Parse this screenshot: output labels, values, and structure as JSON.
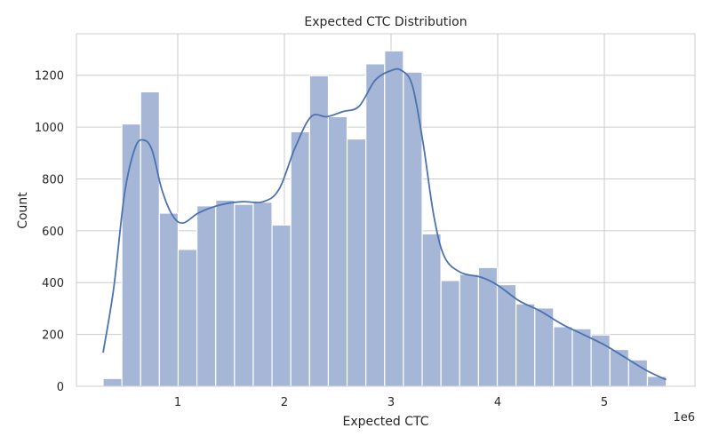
{
  "chart_data": {
    "type": "bar",
    "title": "Expected CTC Distribution",
    "xlabel": "Expected CTC",
    "ylabel": "Count",
    "x_offset_label": "1e6",
    "xlim": [
      50000,
      5850000
    ],
    "ylim": [
      0,
      1360
    ],
    "xticks": [
      {
        "value": 1000000,
        "label": "1"
      },
      {
        "value": 2000000,
        "label": "2"
      },
      {
        "value": 3000000,
        "label": "3"
      },
      {
        "value": 4000000,
        "label": "4"
      },
      {
        "value": 5000000,
        "label": "5"
      }
    ],
    "yticks": [
      {
        "value": 0,
        "label": "0"
      },
      {
        "value": 200,
        "label": "200"
      },
      {
        "value": 400,
        "label": "400"
      },
      {
        "value": 600,
        "label": "600"
      },
      {
        "value": 800,
        "label": "800"
      },
      {
        "value": 1000,
        "label": "1000"
      },
      {
        "value": 1200,
        "label": "1200"
      }
    ],
    "grid": true,
    "bar_color": "#a5b6d6",
    "line_color": "#4c72b0",
    "bin_start": 300000,
    "bin_width": 176000,
    "counts": [
      30,
      1012,
      1136,
      668,
      528,
      696,
      718,
      702,
      710,
      622,
      982,
      1198,
      1040,
      954,
      1244,
      1294,
      1212,
      588,
      408,
      432,
      458,
      392,
      318,
      302,
      230,
      222,
      198,
      142,
      102,
      38
    ],
    "kde": [
      [
        300000,
        130
      ],
      [
        400000,
        380
      ],
      [
        500000,
        740
      ],
      [
        600000,
        920
      ],
      [
        680000,
        950
      ],
      [
        760000,
        910
      ],
      [
        850000,
        760
      ],
      [
        950000,
        660
      ],
      [
        1050000,
        630
      ],
      [
        1200000,
        670
      ],
      [
        1400000,
        700
      ],
      [
        1600000,
        712
      ],
      [
        1800000,
        712
      ],
      [
        1950000,
        760
      ],
      [
        2100000,
        920
      ],
      [
        2250000,
        1040
      ],
      [
        2400000,
        1040
      ],
      [
        2550000,
        1060
      ],
      [
        2700000,
        1080
      ],
      [
        2850000,
        1180
      ],
      [
        3000000,
        1218
      ],
      [
        3100000,
        1218
      ],
      [
        3200000,
        1160
      ],
      [
        3300000,
        940
      ],
      [
        3400000,
        660
      ],
      [
        3500000,
        500
      ],
      [
        3650000,
        440
      ],
      [
        3850000,
        420
      ],
      [
        4000000,
        390
      ],
      [
        4200000,
        330
      ],
      [
        4400000,
        290
      ],
      [
        4600000,
        240
      ],
      [
        4800000,
        200
      ],
      [
        5000000,
        160
      ],
      [
        5200000,
        110
      ],
      [
        5400000,
        60
      ],
      [
        5580000,
        25
      ]
    ]
  }
}
